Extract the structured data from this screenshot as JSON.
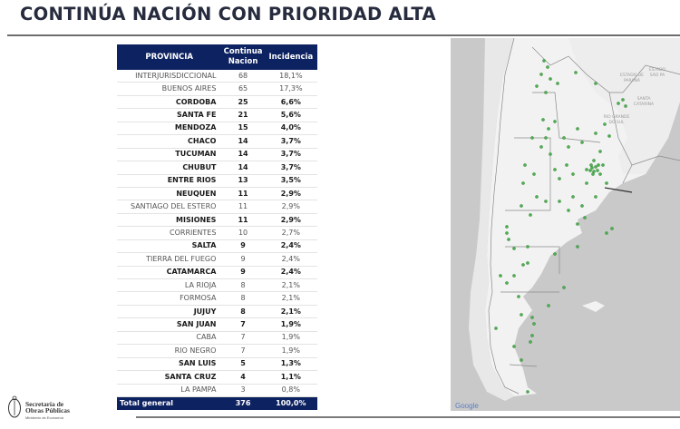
{
  "page": {
    "title": "CONTINÚA NACIÓN CON PRIORIDAD ALTA"
  },
  "table": {
    "headers": {
      "provincia": "PROVINCIA",
      "continua_line1": "Continua",
      "continua_line2": "Nacion",
      "incidencia": "Incidencia"
    },
    "rows": [
      {
        "provincia": "INTERJURISDICCIONAL",
        "continua": "68",
        "incidencia": "18,1%",
        "bold": false
      },
      {
        "provincia": "BUENOS AIRES",
        "continua": "65",
        "incidencia": "17,3%",
        "bold": false
      },
      {
        "provincia": "CORDOBA",
        "continua": "25",
        "incidencia": "6,6%",
        "bold": true
      },
      {
        "provincia": "SANTA FE",
        "continua": "21",
        "incidencia": "5,6%",
        "bold": true
      },
      {
        "provincia": "MENDOZA",
        "continua": "15",
        "incidencia": "4,0%",
        "bold": true
      },
      {
        "provincia": "CHACO",
        "continua": "14",
        "incidencia": "3,7%",
        "bold": true
      },
      {
        "provincia": "TUCUMAN",
        "continua": "14",
        "incidencia": "3,7%",
        "bold": true
      },
      {
        "provincia": "CHUBUT",
        "continua": "14",
        "incidencia": "3,7%",
        "bold": true
      },
      {
        "provincia": "ENTRE RIOS",
        "continua": "13",
        "incidencia": "3,5%",
        "bold": true
      },
      {
        "provincia": "NEUQUEN",
        "continua": "11",
        "incidencia": "2,9%",
        "bold": true
      },
      {
        "provincia": "SANTIAGO DEL ESTERO",
        "continua": "11",
        "incidencia": "2,9%",
        "bold": false
      },
      {
        "provincia": "MISIONES",
        "continua": "11",
        "incidencia": "2,9%",
        "bold": true
      },
      {
        "provincia": "CORRIENTES",
        "continua": "10",
        "incidencia": "2,7%",
        "bold": false
      },
      {
        "provincia": "SALTA",
        "continua": "9",
        "incidencia": "2,4%",
        "bold": true
      },
      {
        "provincia": "TIERRA DEL FUEGO",
        "continua": "9",
        "incidencia": "2,4%",
        "bold": false
      },
      {
        "provincia": "CATAMARCA",
        "continua": "9",
        "incidencia": "2,4%",
        "bold": true
      },
      {
        "provincia": "LA RIOJA",
        "continua": "8",
        "incidencia": "2,1%",
        "bold": false
      },
      {
        "provincia": "FORMOSA",
        "continua": "8",
        "incidencia": "2,1%",
        "bold": false
      },
      {
        "provincia": "JUJUY",
        "continua": "8",
        "incidencia": "2,1%",
        "bold": true
      },
      {
        "provincia": "SAN JUAN",
        "continua": "7",
        "incidencia": "1,9%",
        "bold": true
      },
      {
        "provincia": "CABA",
        "continua": "7",
        "incidencia": "1,9%",
        "bold": false
      },
      {
        "provincia": "RIO NEGRO",
        "continua": "7",
        "incidencia": "1,9%",
        "bold": false
      },
      {
        "provincia": "SAN LUIS",
        "continua": "5",
        "incidencia": "1,3%",
        "bold": true
      },
      {
        "provincia": "SANTA CRUZ",
        "continua": "4",
        "incidencia": "1,1%",
        "bold": true
      },
      {
        "provincia": "LA PAMPA",
        "continua": "3",
        "incidencia": "0,8%",
        "bold": false
      }
    ],
    "total": {
      "label": "Total general",
      "continua": "376",
      "incidencia": "100,0%"
    },
    "colors": {
      "header_bg": "#0d2260",
      "header_text": "#ffffff"
    }
  },
  "map": {
    "labels": [
      "ESTADO DO PARANÁ",
      "SANTA CATARINA",
      "RIO GRANDE DO SUL",
      "ESTADO DE SÃO PAULO"
    ],
    "attribution": "Google",
    "marker_color": "#4caf50"
  },
  "footer": {
    "org_line1": "Secretaría de",
    "org_line2": "Obras Públicas",
    "org_line3": "Ministerio de Economía"
  }
}
